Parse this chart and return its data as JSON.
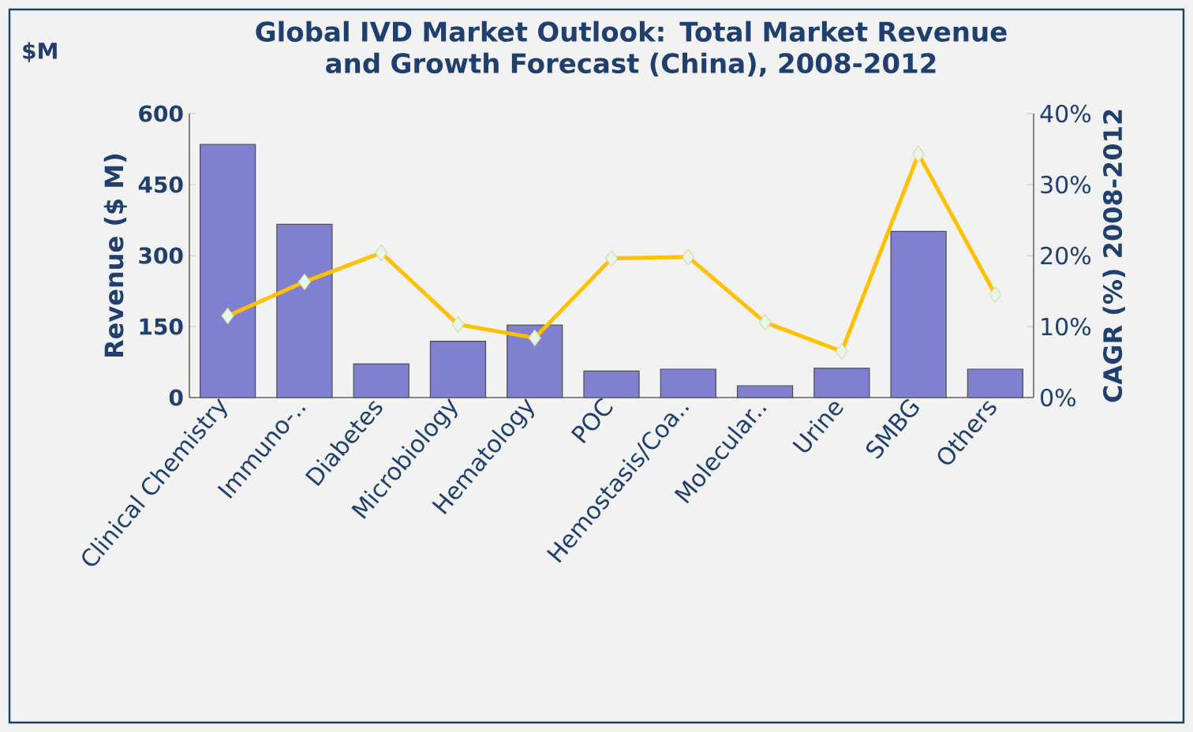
{
  "chart_data": {
    "type": "bar",
    "title": "Global IVD Market Outlook: Total Market Revenue and Growth Forecast (China), 2008-2012",
    "ylabel": "Revenue ($ M)",
    "y2label": "CAGR (%) 2008-2012",
    "annotations": [
      "$M"
    ],
    "categories": [
      "Clinical Chemistry",
      "Immuno-..",
      "Diabetes",
      "Microbiology",
      "Hematology",
      "POC",
      "Hemostasis/Coa..",
      "Molecular..",
      "Urine",
      "SMBG",
      "Others"
    ],
    "series": [
      {
        "color": "#8080d0",
        "values": [
          535,
          366,
          71,
          119,
          153,
          56,
          60,
          25,
          62,
          351,
          60
        ]
      },
      {
        "type": "line",
        "axis": "y2",
        "color": "#ffc000",
        "marker": "diamond",
        "values": [
          11.5,
          16.3,
          20.4,
          10.3,
          8.4,
          19.6,
          19.8,
          10.6,
          6.5,
          34.3,
          14.5
        ]
      }
    ],
    "ylim": [
      0,
      600
    ],
    "yticks": [
      0,
      150,
      300,
      450,
      600
    ],
    "y2lim": [
      0,
      40
    ],
    "y2ticks": [
      {
        "value": 0,
        "label": "0%"
      },
      {
        "value": 10,
        "label": "10%"
      },
      {
        "value": 20,
        "label": "20%"
      },
      {
        "value": 30,
        "label": "30%"
      },
      {
        "value": 40,
        "label": "40%"
      }
    ]
  }
}
